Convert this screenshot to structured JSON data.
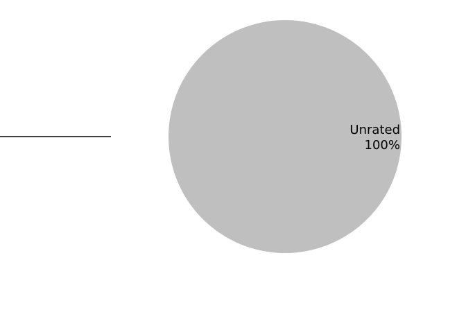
{
  "chart_data": {
    "type": "pie",
    "title": "",
    "slices": [
      {
        "label": "Unrated",
        "value": 100,
        "percent_label": "100%",
        "color": "#bfbfbf"
      }
    ],
    "legend": "none"
  }
}
